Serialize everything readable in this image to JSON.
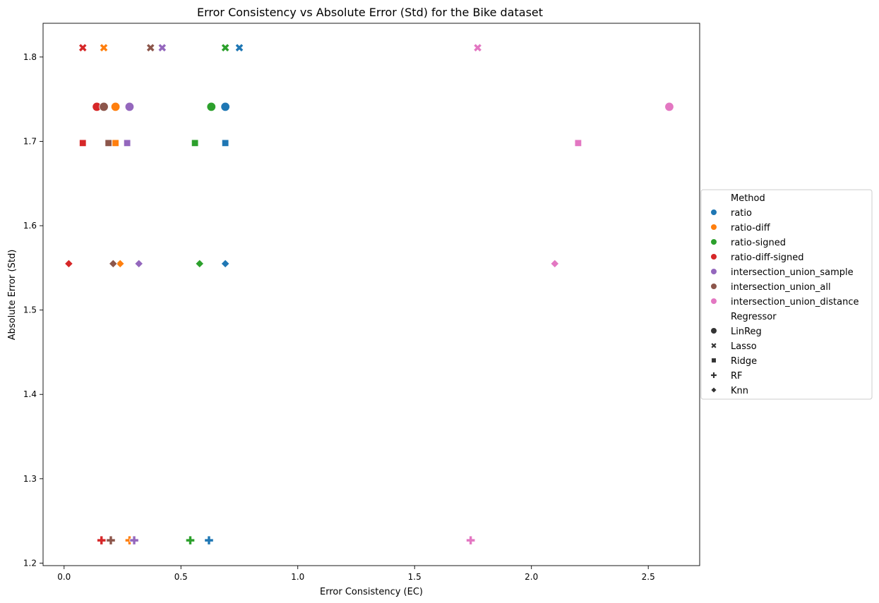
{
  "chart_data": {
    "type": "scatter",
    "title": "Error Consistency vs Absolute Error (Std) for the Bike dataset",
    "xlabel": "Error Consistency (EC)",
    "ylabel": "Absolute Error (Std)",
    "xlim": [
      -0.09,
      2.72
    ],
    "ylim": [
      1.197,
      1.84
    ],
    "xticks": [
      0.0,
      0.5,
      1.0,
      1.5,
      2.0,
      2.5
    ],
    "yticks": [
      1.2,
      1.3,
      1.4,
      1.5,
      1.6,
      1.7,
      1.8
    ],
    "grid": false,
    "legend": {
      "placement": "outside-right",
      "hue_title": "Method",
      "style_title": "Regressor",
      "methods": [
        {
          "name": "ratio",
          "color": "#1f77b4"
        },
        {
          "name": "ratio-diff",
          "color": "#ff7f0e"
        },
        {
          "name": "ratio-signed",
          "color": "#2ca02c"
        },
        {
          "name": "ratio-diff-signed",
          "color": "#d62728"
        },
        {
          "name": "intersection_union_sample",
          "color": "#9467bd"
        },
        {
          "name": "intersection_union_all",
          "color": "#8c564b"
        },
        {
          "name": "intersection_union_distance",
          "color": "#e377c2"
        }
      ],
      "regressors": [
        {
          "name": "LinReg",
          "marker": "circle"
        },
        {
          "name": "Lasso",
          "marker": "x"
        },
        {
          "name": "Ridge",
          "marker": "square"
        },
        {
          "name": "RF",
          "marker": "plus"
        },
        {
          "name": "Knn",
          "marker": "diamond"
        }
      ]
    },
    "points": [
      {
        "method": "ratio",
        "regressor": "LinReg",
        "x": 0.69,
        "y": 1.741
      },
      {
        "method": "ratio-diff",
        "regressor": "LinReg",
        "x": 0.22,
        "y": 1.741
      },
      {
        "method": "ratio-signed",
        "regressor": "LinReg",
        "x": 0.63,
        "y": 1.741
      },
      {
        "method": "ratio-diff-signed",
        "regressor": "LinReg",
        "x": 0.14,
        "y": 1.741
      },
      {
        "method": "intersection_union_sample",
        "regressor": "LinReg",
        "x": 0.28,
        "y": 1.741
      },
      {
        "method": "intersection_union_all",
        "regressor": "LinReg",
        "x": 0.17,
        "y": 1.741
      },
      {
        "method": "intersection_union_distance",
        "regressor": "LinReg",
        "x": 2.59,
        "y": 1.741
      },
      {
        "method": "ratio",
        "regressor": "Lasso",
        "x": 0.75,
        "y": 1.811
      },
      {
        "method": "ratio-diff",
        "regressor": "Lasso",
        "x": 0.17,
        "y": 1.811
      },
      {
        "method": "ratio-signed",
        "regressor": "Lasso",
        "x": 0.69,
        "y": 1.811
      },
      {
        "method": "ratio-diff-signed",
        "regressor": "Lasso",
        "x": 0.08,
        "y": 1.811
      },
      {
        "method": "intersection_union_sample",
        "regressor": "Lasso",
        "x": 0.42,
        "y": 1.811
      },
      {
        "method": "intersection_union_all",
        "regressor": "Lasso",
        "x": 0.37,
        "y": 1.811
      },
      {
        "method": "intersection_union_distance",
        "regressor": "Lasso",
        "x": 1.77,
        "y": 1.811
      },
      {
        "method": "ratio",
        "regressor": "Ridge",
        "x": 0.69,
        "y": 1.698
      },
      {
        "method": "ratio-diff",
        "regressor": "Ridge",
        "x": 0.22,
        "y": 1.698
      },
      {
        "method": "ratio-signed",
        "regressor": "Ridge",
        "x": 0.56,
        "y": 1.698
      },
      {
        "method": "ratio-diff-signed",
        "regressor": "Ridge",
        "x": 0.08,
        "y": 1.698
      },
      {
        "method": "intersection_union_sample",
        "regressor": "Ridge",
        "x": 0.27,
        "y": 1.698
      },
      {
        "method": "intersection_union_all",
        "regressor": "Ridge",
        "x": 0.19,
        "y": 1.698
      },
      {
        "method": "intersection_union_distance",
        "regressor": "Ridge",
        "x": 2.2,
        "y": 1.698
      },
      {
        "method": "ratio",
        "regressor": "RF",
        "x": 0.62,
        "y": 1.227
      },
      {
        "method": "ratio-diff",
        "regressor": "RF",
        "x": 0.28,
        "y": 1.227
      },
      {
        "method": "ratio-signed",
        "regressor": "RF",
        "x": 0.54,
        "y": 1.227
      },
      {
        "method": "ratio-diff-signed",
        "regressor": "RF",
        "x": 0.16,
        "y": 1.227
      },
      {
        "method": "intersection_union_sample",
        "regressor": "RF",
        "x": 0.3,
        "y": 1.227
      },
      {
        "method": "intersection_union_all",
        "regressor": "RF",
        "x": 0.2,
        "y": 1.227
      },
      {
        "method": "intersection_union_distance",
        "regressor": "RF",
        "x": 1.74,
        "y": 1.227
      },
      {
        "method": "ratio",
        "regressor": "Knn",
        "x": 0.69,
        "y": 1.555
      },
      {
        "method": "ratio-diff",
        "regressor": "Knn",
        "x": 0.24,
        "y": 1.555
      },
      {
        "method": "ratio-signed",
        "regressor": "Knn",
        "x": 0.58,
        "y": 1.555
      },
      {
        "method": "ratio-diff-signed",
        "regressor": "Knn",
        "x": 0.02,
        "y": 1.555
      },
      {
        "method": "intersection_union_sample",
        "regressor": "Knn",
        "x": 0.32,
        "y": 1.555
      },
      {
        "method": "intersection_union_all",
        "regressor": "Knn",
        "x": 0.21,
        "y": 1.555
      },
      {
        "method": "intersection_union_distance",
        "regressor": "Knn",
        "x": 2.1,
        "y": 1.555
      }
    ]
  }
}
